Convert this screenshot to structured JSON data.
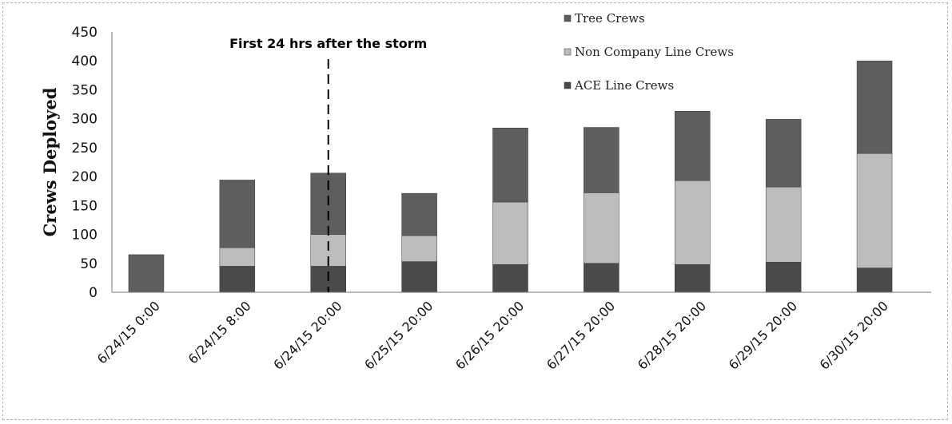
{
  "chart_data": {
    "type": "bar",
    "stacked": true,
    "ylabel": "Crews Deployed",
    "ylim": [
      0,
      450
    ],
    "yticks": [
      0,
      50,
      100,
      150,
      200,
      250,
      300,
      350,
      400,
      450
    ],
    "categories": [
      "6/24/15 0:00",
      "6/24/15 8:00",
      "6/24/15 20:00",
      "6/25/15 20:00",
      "6/26/15 20:00",
      "6/27/15 20:00",
      "6/28/15 20:00",
      "6/29/15 20:00",
      "6/30/15 20:00"
    ],
    "series": [
      {
        "name": "ACE Line Crews",
        "color": "#4a4a4a",
        "values": [
          0,
          45,
          45,
          53,
          48,
          50,
          48,
          52,
          42
        ]
      },
      {
        "name": "Non Company Line Crews",
        "color": "#bdbdbd",
        "values": [
          0,
          32,
          55,
          45,
          108,
          122,
          145,
          130,
          198
        ]
      },
      {
        "name": "Tree Crews",
        "color": "#5e5e5e",
        "values": [
          65,
          117,
          106,
          73,
          128,
          113,
          120,
          117,
          160
        ]
      }
    ],
    "legend_order": [
      "Tree Crews",
      "Non Company Line Crews",
      "ACE Line Crews"
    ],
    "legend_position": "top-right",
    "annotation": {
      "text": "First 24 hrs after the storm",
      "x_category": "6/24/15 20:00",
      "style": "dashed-vertical-line"
    }
  }
}
